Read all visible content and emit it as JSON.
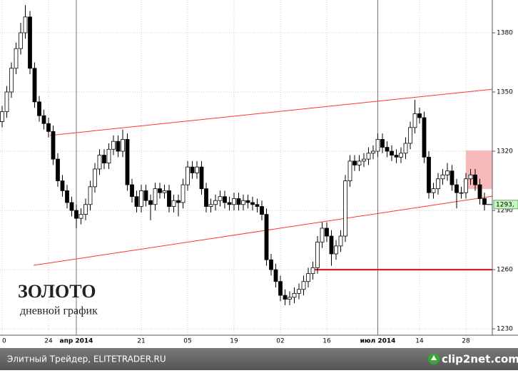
{
  "chart_data": {
    "type": "candlestick",
    "title": "ЗОЛОТО",
    "subtitle": "дневной график",
    "categories": [
      "0",
      null,
      null,
      null,
      null,
      null,
      null,
      null,
      null,
      null,
      "24",
      null,
      null,
      null,
      null,
      null,
      "апр 2014",
      null,
      null,
      null,
      null,
      null,
      null,
      null,
      null,
      null,
      null,
      null,
      null,
      null,
      "21",
      null,
      null,
      null,
      null,
      null,
      null,
      null,
      null,
      null,
      "05",
      null,
      null,
      null,
      null,
      null,
      null,
      null,
      null,
      null,
      "19",
      null,
      null,
      null,
      null,
      null,
      null,
      null,
      null,
      null,
      "02",
      null,
      null,
      null,
      null,
      null,
      null,
      null,
      null,
      null,
      "16",
      null,
      null,
      null,
      null,
      null,
      null,
      null,
      null,
      null,
      null,
      "июл 2014",
      null,
      null,
      null,
      null,
      null,
      null,
      null,
      null,
      "14",
      null,
      null,
      null,
      null,
      null,
      null,
      null,
      null,
      null,
      "28",
      null,
      null,
      null,
      null
    ],
    "open": [
      1335,
      1340,
      1350,
      1362,
      1372,
      1380,
      1388,
      1362,
      1345,
      1338,
      1334,
      1330,
      1316,
      1305,
      1300,
      1294,
      1290,
      1286,
      1288,
      1293,
      1302,
      1311,
      1318,
      1314,
      1321,
      1325,
      1320,
      1326,
      1303,
      1297,
      1292,
      1300,
      1295,
      1293,
      1301,
      1299,
      1300,
      1292,
      1295,
      1294,
      1303,
      1312,
      1309,
      1312,
      1301,
      1292,
      1293,
      1295,
      1297,
      1294,
      1293,
      1296,
      1293,
      1295,
      1294,
      1293,
      1292,
      1288,
      1265,
      1260,
      1254,
      1247,
      1245,
      1246,
      1248,
      1250,
      1254,
      1258,
      1261,
      1274,
      1281,
      1277,
      1268,
      1272,
      1277,
      1305,
      1315,
      1313,
      1315,
      1316,
      1319,
      1320,
      1326,
      1322,
      1320,
      1318,
      1317,
      1319,
      1324,
      1332,
      1339,
      1337,
      1317,
      1299,
      1301,
      1306,
      1308,
      1310,
      1303,
      1299,
      1299,
      1306,
      1308,
      1303,
      1296
    ],
    "high": [
      1343,
      1353,
      1365,
      1375,
      1385,
      1394,
      1391,
      1365,
      1348,
      1341,
      1337,
      1333,
      1319,
      1308,
      1303,
      1297,
      1293,
      1291,
      1296,
      1305,
      1314,
      1321,
      1321,
      1324,
      1328,
      1328,
      1331,
      1329,
      1306,
      1300,
      1303,
      1303,
      1298,
      1304,
      1304,
      1303,
      1303,
      1298,
      1298,
      1306,
      1315,
      1315,
      1315,
      1315,
      1304,
      1296,
      1298,
      1300,
      1300,
      1297,
      1299,
      1299,
      1298,
      1298,
      1297,
      1296,
      1295,
      1291,
      1268,
      1263,
      1257,
      1250,
      1249,
      1251,
      1253,
      1257,
      1261,
      1264,
      1277,
      1284,
      1284,
      1280,
      1275,
      1280,
      1308,
      1318,
      1318,
      1318,
      1319,
      1322,
      1323,
      1329,
      1329,
      1325,
      1323,
      1321,
      1322,
      1327,
      1335,
      1346,
      1342,
      1340,
      1320,
      1304,
      1309,
      1311,
      1314,
      1313,
      1306,
      1302,
      1309,
      1311,
      1311,
      1306,
      1299
    ],
    "low": [
      1332,
      1337,
      1347,
      1359,
      1369,
      1377,
      1359,
      1342,
      1335,
      1331,
      1327,
      1313,
      1302,
      1297,
      1291,
      1287,
      1281,
      1283,
      1285,
      1290,
      1299,
      1308,
      1311,
      1311,
      1318,
      1317,
      1317,
      1300,
      1294,
      1289,
      1289,
      1292,
      1285,
      1290,
      1296,
      1296,
      1289,
      1289,
      1287,
      1291,
      1300,
      1306,
      1306,
      1298,
      1289,
      1289,
      1290,
      1292,
      1291,
      1290,
      1290,
      1290,
      1290,
      1291,
      1290,
      1289,
      1285,
      1262,
      1257,
      1251,
      1244,
      1242,
      1242,
      1243,
      1245,
      1247,
      1251,
      1255,
      1258,
      1271,
      1274,
      1262,
      1265,
      1269,
      1274,
      1302,
      1310,
      1310,
      1312,
      1313,
      1316,
      1317,
      1319,
      1317,
      1315,
      1314,
      1314,
      1316,
      1321,
      1329,
      1334,
      1314,
      1296,
      1296,
      1298,
      1303,
      1305,
      1300,
      1291,
      1296,
      1296,
      1303,
      1300,
      1293,
      1290
    ],
    "close": [
      1340,
      1350,
      1362,
      1372,
      1380,
      1388,
      1362,
      1345,
      1338,
      1334,
      1330,
      1316,
      1305,
      1300,
      1294,
      1290,
      1286,
      1288,
      1293,
      1302,
      1311,
      1318,
      1314,
      1321,
      1325,
      1320,
      1326,
      1303,
      1297,
      1292,
      1300,
      1295,
      1293,
      1301,
      1299,
      1300,
      1292,
      1295,
      1294,
      1303,
      1312,
      1309,
      1312,
      1301,
      1292,
      1293,
      1295,
      1297,
      1294,
      1293,
      1296,
      1293,
      1295,
      1294,
      1293,
      1292,
      1288,
      1265,
      1260,
      1254,
      1247,
      1245,
      1246,
      1248,
      1250,
      1254,
      1258,
      1261,
      1274,
      1281,
      1277,
      1268,
      1272,
      1277,
      1305,
      1315,
      1313,
      1315,
      1316,
      1319,
      1320,
      1326,
      1322,
      1320,
      1318,
      1317,
      1319,
      1324,
      1332,
      1339,
      1337,
      1317,
      1299,
      1301,
      1306,
      1308,
      1310,
      1303,
      1299,
      1299,
      1306,
      1308,
      1303,
      1296,
      1293
    ],
    "up_color": "#ffffff",
    "down_color": "#000000",
    "last_label": "1293,",
    "ylim": [
      1226.8,
      1396.6
    ],
    "yticks": [
      1230,
      1260,
      1290,
      1320,
      1350,
      1380
    ],
    "grid": true,
    "separators": [
      16,
      81
    ],
    "trendlines": [
      {
        "x": [
          10.3,
          105.7
        ],
        "y": [
          1328,
          1351.4
        ],
        "color": "#ff3333",
        "width": 1
      },
      {
        "x": [
          6.8,
          105.7
        ],
        "y": [
          1262.2,
          1297.2
        ],
        "color": "#ff3333",
        "width": 1
      },
      {
        "x": [
          67,
          105.7
        ],
        "y": [
          1260,
          1260
        ],
        "color": "#ff0000",
        "width": 2
      }
    ],
    "zone": {
      "x": [
        100,
        105.7
      ],
      "y": [
        1300.9,
        1320.4
      ],
      "color": "#f7b9b9"
    }
  },
  "footer": {
    "text": "Элитный Трейдер, ELITETRADER.RU",
    "logo": "clip2net.com"
  }
}
